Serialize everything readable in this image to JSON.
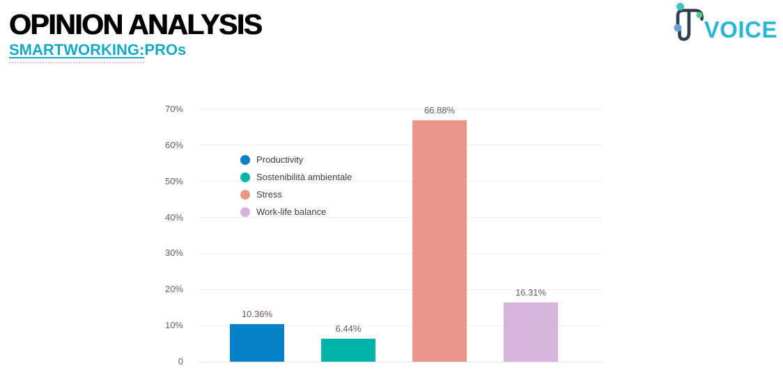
{
  "header": {
    "title": "OPINION ANALYSIS",
    "subtitle": {
      "main": "SMARTWORKING:",
      "suffix": " PROs"
    }
  },
  "logo": {
    "text": "VOICE"
  },
  "colors": {
    "subtitle": "#16a9c5",
    "squiggle": "#f0b3c0",
    "logo_text": "#29b6d3",
    "logo_mark": "#2c3e50",
    "logo_dot_teal": "#41c1c0",
    "logo_dot_green": "#54ca8e",
    "logo_dot_blue": "#68a0d8",
    "grid_line": "#eeeeee",
    "baseline": "#e0e0e0",
    "axis_text": "#6f5a60",
    "value_label": "#6b565e",
    "legend_text": "#3d3d3d"
  },
  "chart_data": {
    "type": "bar",
    "categories": [
      "Productivity",
      "Sostenibilità ambientale",
      "Stress",
      "Work-life balance"
    ],
    "values": [
      10.36,
      6.44,
      66.88,
      16.31
    ],
    "value_labels": [
      "10.36%",
      "6.44%",
      "66.88%",
      "16.31%"
    ],
    "bar_colors": [
      "#0481c7",
      "#00b4a7",
      "#ea948a",
      "#d6b3da"
    ],
    "title": "",
    "xlabel": "",
    "ylabel": "",
    "ylim": [
      0,
      70
    ],
    "ytick_labels": [
      "0",
      "10%",
      "20%",
      "30%",
      "40%",
      "50%",
      "60%",
      "70%"
    ],
    "grid": true,
    "legend_position": "inside-top-left"
  }
}
